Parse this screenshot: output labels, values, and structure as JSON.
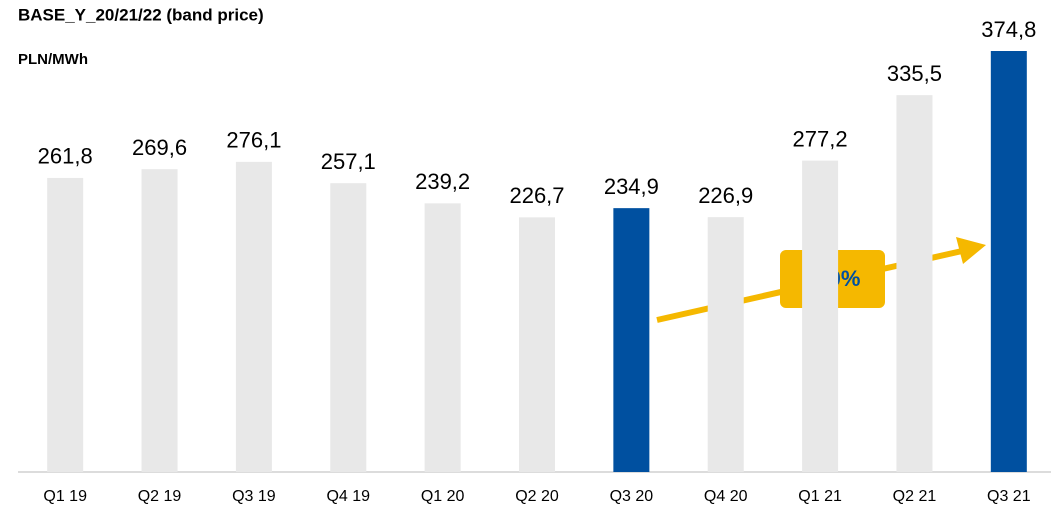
{
  "chart_data": {
    "type": "bar",
    "title": "BASE_Y_20/21/22 (band price)",
    "subtitle": "PLN/MWh",
    "categories": [
      "Q1 19",
      "Q2 19",
      "Q3 19",
      "Q4 19",
      "Q1 20",
      "Q2 20",
      "Q3 20",
      "Q4 20",
      "Q1 21",
      "Q2 21",
      "Q3 21"
    ],
    "values": [
      261.8,
      269.6,
      276.1,
      257.1,
      239.2,
      226.7,
      234.9,
      226.9,
      277.2,
      335.5,
      374.8
    ],
    "value_labels": [
      "261,8",
      "269,6",
      "276,1",
      "257,1",
      "239,2",
      "226,7",
      "234,9",
      "226,9",
      "277,2",
      "335,5",
      "374,8"
    ],
    "colors": [
      "#e8e8e8",
      "#e8e8e8",
      "#e8e8e8",
      "#e8e8e8",
      "#e8e8e8",
      "#e8e8e8",
      "#0050a0",
      "#e8e8e8",
      "#e8e8e8",
      "#e8e8e8",
      "#0050a0"
    ],
    "annotation": "+60%"
  }
}
